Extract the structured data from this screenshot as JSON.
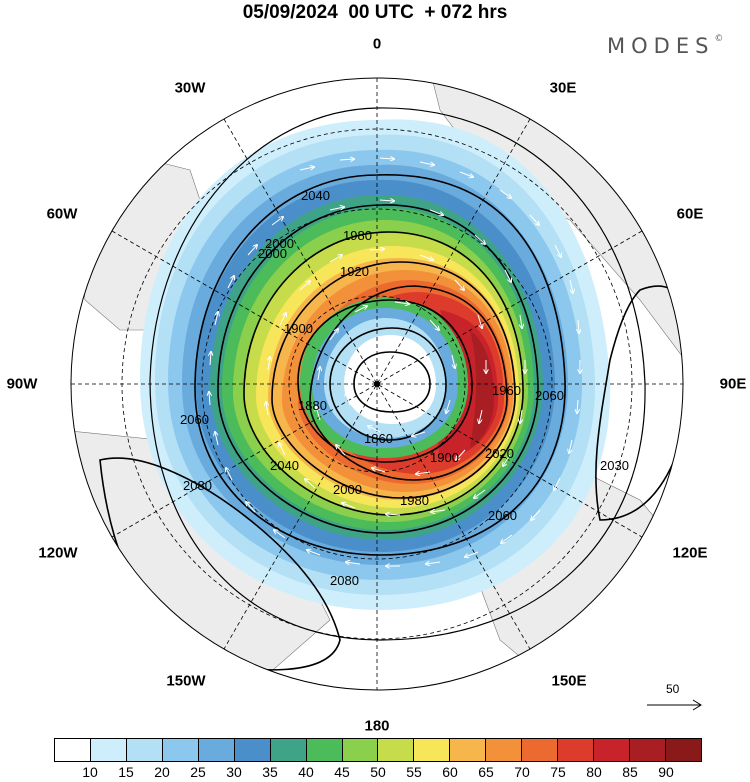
{
  "title": "05/09/2024  00 UTC  + 072 hrs",
  "brand": "MODES",
  "brand_mark": "©",
  "longitude_labels": [
    "0",
    "30E",
    "60E",
    "90E",
    "120E",
    "150E",
    "180",
    "150W",
    "120W",
    "90W",
    "60W",
    "30W"
  ],
  "contour_labels": [
    "2040",
    "2000",
    "1980",
    "1920",
    "1900",
    "1860",
    "1880",
    "2060",
    "2080",
    "1960",
    "1900",
    "1980",
    "2000",
    "2040",
    "2020",
    "2060",
    "2030",
    "2080",
    "2060",
    "2000"
  ],
  "wind_scale_label": "50",
  "colorbar": {
    "ticks": [
      "10",
      "15",
      "20",
      "25",
      "30",
      "35",
      "40",
      "45",
      "50",
      "55",
      "60",
      "65",
      "70",
      "75",
      "80",
      "85",
      "90"
    ],
    "colors": [
      "#ffffff",
      "#cfeefb",
      "#b3e0f5",
      "#8cc8ee",
      "#69abdd",
      "#4a8fc9",
      "#3fa487",
      "#4cbb59",
      "#8bd04c",
      "#c6dc4a",
      "#f7e55a",
      "#f6b64c",
      "#f3903a",
      "#ec6a30",
      "#dd3c2c",
      "#c8232b",
      "#a81e22",
      "#8a1a1a"
    ]
  },
  "map": {
    "projection": "north-polar-stereographic",
    "field": "wind speed (shaded) and geopotential height (contours)",
    "icons": [
      "pole-marker-icon",
      "wind-arrow-icon"
    ]
  }
}
